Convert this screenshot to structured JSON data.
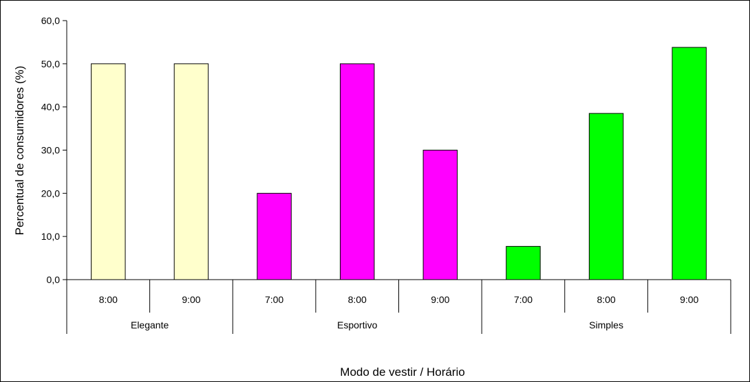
{
  "chart_data": {
    "type": "bar",
    "ylabel": "Percentual de consumidores (%)",
    "xlabel": "Modo de vestir / Horário",
    "ylim": [
      0,
      60
    ],
    "yticks": [
      "0,0",
      "10,0",
      "20,0",
      "30,0",
      "40,0",
      "50,0",
      "60,0"
    ],
    "grid": false,
    "groups": [
      {
        "name": "Elegante",
        "color": "#ffffcc",
        "categories": [
          "8:00",
          "9:00"
        ],
        "values": [
          50.0,
          50.0
        ]
      },
      {
        "name": "Esportivo",
        "color": "#ff00ff",
        "categories": [
          "7:00",
          "8:00",
          "9:00"
        ],
        "values": [
          20.0,
          50.0,
          30.0
        ]
      },
      {
        "name": "Simples",
        "color": "#00ff00",
        "categories": [
          "7:00",
          "8:00",
          "9:00"
        ],
        "values": [
          7.7,
          38.5,
          53.8
        ]
      }
    ]
  }
}
